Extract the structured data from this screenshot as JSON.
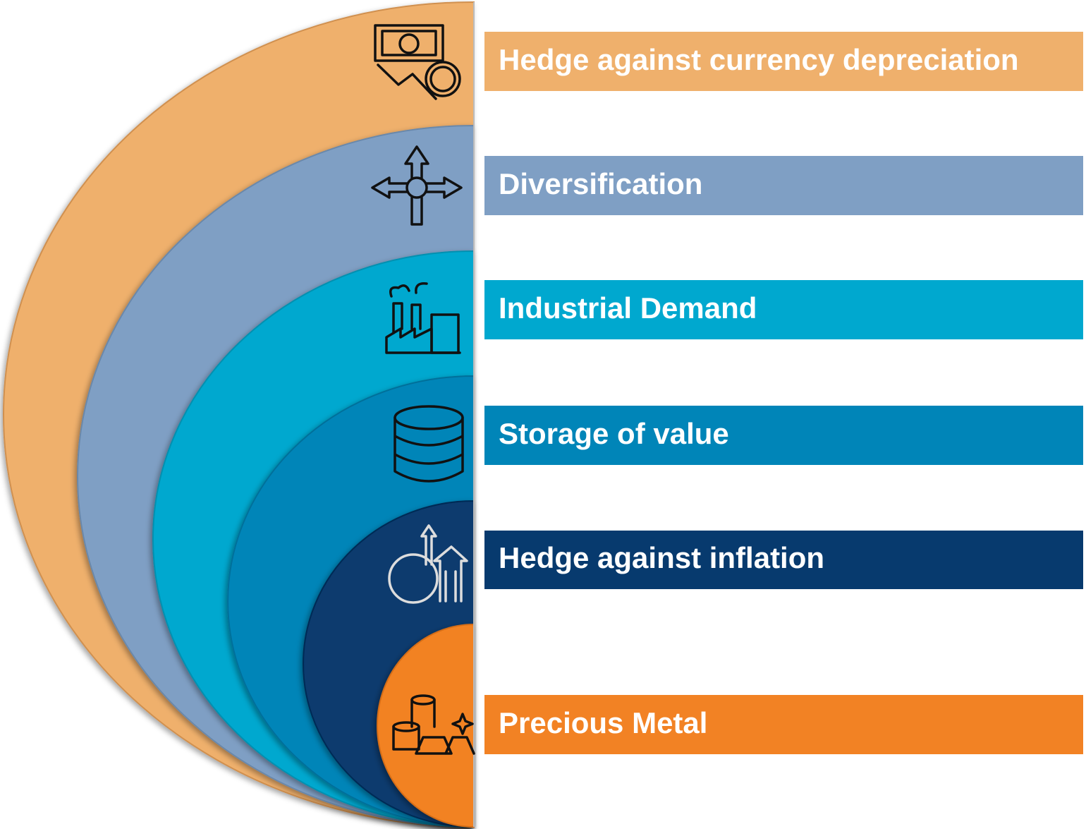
{
  "layers": [
    {
      "label": "Hedge against currency depreciation"
    },
    {
      "label": "Diversification"
    },
    {
      "label": "Industrial Demand"
    },
    {
      "label": "Storage of value"
    },
    {
      "label": "Hedge against inflation"
    },
    {
      "label": "Precious Metal"
    }
  ]
}
